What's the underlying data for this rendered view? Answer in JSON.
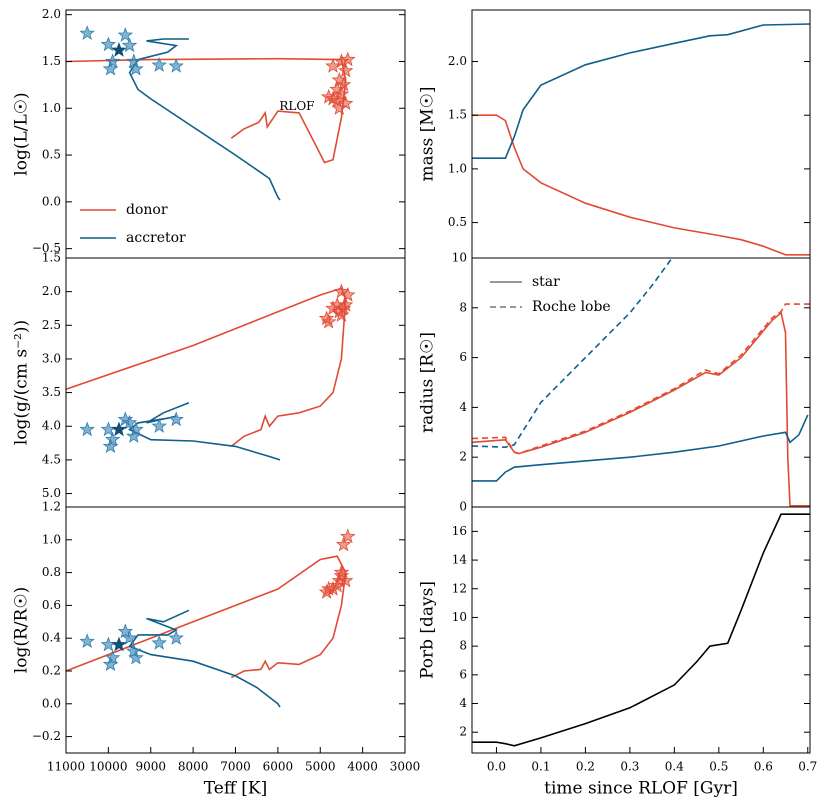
{
  "chart_data": [
    {
      "type": "line",
      "ylabel": "log(L/L☉)",
      "xlim": [
        11000,
        3000
      ],
      "ylim": [
        -0.6,
        2.05
      ],
      "yticks": [
        {
          "value": -0.5,
          "label": "−0.5"
        },
        {
          "value": 0,
          "label": "0.0"
        },
        {
          "value": 0.5,
          "label": "0.5"
        },
        {
          "value": 1,
          "label": "1.0"
        },
        {
          "value": 1.5,
          "label": "1.5"
        },
        {
          "value": 2,
          "label": "2.0"
        }
      ],
      "legend": "lower left",
      "annotation": {
        "text": "RLOF",
        "x": 5550,
        "y": 1.02,
        "color": "#e24a33"
      },
      "series": [
        {
          "name": "donor",
          "color": "#e24a33",
          "x": [
            7100,
            6800,
            6450,
            6300,
            6250,
            6000,
            5500,
            5100,
            4900,
            4700,
            4500,
            4400,
            4500,
            6000,
            9000,
            11000
          ],
          "values": [
            0.68,
            0.78,
            0.85,
            0.95,
            0.8,
            0.97,
            0.95,
            0.6,
            0.42,
            0.45,
            0.9,
            1.3,
            1.52,
            1.53,
            1.52,
            1.5
          ]
        },
        {
          "name": "accretor",
          "color": "#0f5e8c",
          "x": [
            5950,
            6000,
            6200,
            7000,
            8000,
            9000,
            9300,
            9500,
            9300,
            8600,
            8400,
            9100,
            8700,
            8100
          ],
          "values": [
            0.02,
            0.05,
            0.25,
            0.5,
            0.8,
            1.1,
            1.2,
            1.38,
            1.52,
            1.6,
            1.67,
            1.72,
            1.74,
            1.74
          ]
        },
        {
          "marker": "star",
          "color": "#e24a33",
          "opacity": 0.55,
          "x": [
            4500,
            4350,
            4400,
            4700,
            4550,
            4450,
            4600,
            4500,
            4700,
            4800,
            4400,
            4600,
            4550
          ],
          "values": [
            1.5,
            1.52,
            1.4,
            1.45,
            1.3,
            1.25,
            1.2,
            1.15,
            1.1,
            1.12,
            1.05,
            1.08,
            1.0
          ]
        },
        {
          "marker": "star",
          "color": "#2f7fb0",
          "opacity": 0.6,
          "x": [
            10500,
            10000,
            9600,
            9500,
            9900,
            9950,
            9400,
            9350,
            8800,
            8400
          ],
          "values": [
            1.8,
            1.68,
            1.78,
            1.67,
            1.5,
            1.42,
            1.5,
            1.42,
            1.46,
            1.45
          ]
        },
        {
          "marker": "star",
          "color": "#0f4f78",
          "opacity": 1,
          "x": [
            9750
          ],
          "values": [
            1.62
          ]
        }
      ]
    },
    {
      "type": "line",
      "ylabel": "mass [M☉]",
      "xlim": [
        -0.055,
        0.705
      ],
      "ylim": [
        0.17,
        2.48
      ],
      "yticks": [
        {
          "value": 0.5,
          "label": "0.5"
        },
        {
          "value": 1,
          "label": "1.0"
        },
        {
          "value": 1.5,
          "label": "1.5"
        },
        {
          "value": 2,
          "label": "2.0"
        }
      ],
      "series": [
        {
          "color": "#e24a33",
          "x": [
            -0.055,
            0,
            0.02,
            0.04,
            0.06,
            0.1,
            0.2,
            0.3,
            0.4,
            0.5,
            0.55,
            0.6,
            0.65,
            0.705
          ],
          "values": [
            1.5,
            1.5,
            1.45,
            1.2,
            1.0,
            0.87,
            0.68,
            0.55,
            0.45,
            0.38,
            0.34,
            0.28,
            0.2,
            0.2
          ]
        },
        {
          "color": "#0f5e8c",
          "x": [
            -0.055,
            0.02,
            0.04,
            0.06,
            0.1,
            0.2,
            0.3,
            0.4,
            0.48,
            0.52,
            0.6,
            0.705
          ],
          "values": [
            1.1,
            1.1,
            1.3,
            1.55,
            1.78,
            1.97,
            2.08,
            2.17,
            2.24,
            2.25,
            2.34,
            2.35
          ]
        }
      ]
    },
    {
      "type": "line",
      "ylabel": "log(g/(cm s⁻²))",
      "xlim": [
        11000,
        3000
      ],
      "ylim": [
        5.2,
        1.5
      ],
      "yticks": [
        {
          "value": 1.5,
          "label": "1.5"
        },
        {
          "value": 2,
          "label": "2.0"
        },
        {
          "value": 2.5,
          "label": "2.5"
        },
        {
          "value": 3,
          "label": "3.0"
        },
        {
          "value": 3.5,
          "label": "3.5"
        },
        {
          "value": 4,
          "label": "4.0"
        },
        {
          "value": 4.5,
          "label": "4.5"
        },
        {
          "value": 5,
          "label": "5.0"
        }
      ],
      "series": [
        {
          "color": "#e24a33",
          "x": [
            7100,
            6800,
            6400,
            6300,
            6200,
            6000,
            5500,
            5000,
            4700,
            4500,
            4400,
            4500,
            5000,
            6000,
            8000,
            11000
          ],
          "values": [
            4.3,
            4.15,
            4.05,
            3.85,
            4.0,
            3.85,
            3.8,
            3.7,
            3.5,
            3.0,
            2.1,
            1.95,
            2.05,
            2.3,
            2.8,
            3.45
          ]
        },
        {
          "color": "#0f5e8c",
          "x": [
            5950,
            6200,
            7000,
            8000,
            9000,
            9500,
            9300,
            8600,
            8400,
            9100,
            8700,
            8100
          ],
          "values": [
            4.5,
            4.45,
            4.3,
            4.22,
            4.2,
            4.05,
            3.95,
            3.88,
            3.85,
            3.95,
            3.8,
            3.65
          ]
        },
        {
          "marker": "star",
          "color": "#e24a33",
          "opacity": 0.55,
          "x": [
            4500,
            4350,
            4400,
            4700,
            4550,
            4600,
            4850,
            4800,
            4500,
            4450
          ],
          "values": [
            2.0,
            2.05,
            2.2,
            2.25,
            2.3,
            2.2,
            2.4,
            2.45,
            2.35,
            2.25
          ]
        },
        {
          "marker": "star",
          "color": "#2f7fb0",
          "opacity": 0.6,
          "x": [
            10500,
            10000,
            9950,
            9900,
            9600,
            9500,
            9400,
            9350,
            8800,
            8400
          ],
          "values": [
            4.05,
            4.05,
            4.3,
            4.2,
            3.9,
            3.95,
            4.15,
            4.05,
            4.0,
            3.9
          ]
        },
        {
          "marker": "star",
          "color": "#0f4f78",
          "opacity": 1,
          "x": [
            9750
          ],
          "values": [
            4.05
          ]
        }
      ]
    },
    {
      "type": "line",
      "ylabel": "radius [R☉]",
      "xlim": [
        -0.055,
        0.705
      ],
      "ylim": [
        0,
        10
      ],
      "yticks": [
        0,
        2,
        4,
        6,
        8,
        10
      ],
      "legend_entries": [
        {
          "label": "star",
          "dash": false
        },
        {
          "label": "Roche lobe",
          "dash": true
        }
      ],
      "legend_color": "#777777",
      "series": [
        {
          "color": "#e24a33",
          "dash": false,
          "x": [
            -0.055,
            0.02,
            0.04,
            0.05,
            0.1,
            0.2,
            0.3,
            0.4,
            0.47,
            0.5,
            0.55,
            0.62,
            0.64,
            0.65,
            0.655,
            0.66,
            0.705
          ],
          "values": [
            2.6,
            2.7,
            2.2,
            2.15,
            2.4,
            3.0,
            3.8,
            4.7,
            5.4,
            5.3,
            6.0,
            7.5,
            7.8,
            7.0,
            2.0,
            0.05,
            0.05
          ]
        },
        {
          "color": "#e24a33",
          "dash": true,
          "x": [
            -0.055,
            0.02,
            0.04,
            0.05,
            0.1,
            0.2,
            0.3,
            0.4,
            0.47,
            0.5,
            0.55,
            0.62,
            0.64,
            0.65,
            0.705
          ],
          "values": [
            2.75,
            2.8,
            2.2,
            2.15,
            2.45,
            3.05,
            3.85,
            4.75,
            5.5,
            5.35,
            6.1,
            7.6,
            7.85,
            8.15,
            8.15
          ]
        },
        {
          "color": "#0f5e8c",
          "dash": false,
          "x": [
            -0.055,
            0,
            0.02,
            0.04,
            0.1,
            0.2,
            0.3,
            0.4,
            0.5,
            0.6,
            0.65,
            0.66,
            0.68,
            0.7
          ],
          "values": [
            1.05,
            1.05,
            1.4,
            1.6,
            1.7,
            1.85,
            2.0,
            2.2,
            2.45,
            2.85,
            3.0,
            2.6,
            2.9,
            3.7
          ]
        },
        {
          "color": "#0f5e8c",
          "dash": true,
          "x": [
            -0.055,
            0.02,
            0.04,
            0.1,
            0.2,
            0.3,
            0.35,
            0.395
          ],
          "values": [
            2.45,
            2.4,
            2.5,
            4.2,
            6.0,
            7.8,
            8.9,
            10
          ]
        }
      ]
    },
    {
      "type": "line",
      "ylabel": "log(R/R☉)",
      "xlabel": "Teff [K]",
      "xlim": [
        11000,
        3000
      ],
      "ylim": [
        -0.3,
        1.2
      ],
      "xticks": [
        11000,
        10000,
        9000,
        8000,
        7000,
        6000,
        5000,
        4000,
        3000
      ],
      "yticks": [
        {
          "value": -0.2,
          "label": "−0.2"
        },
        {
          "value": 0,
          "label": "0.0"
        },
        {
          "value": 0.2,
          "label": "0.2"
        },
        {
          "value": 0.4,
          "label": "0.4"
        },
        {
          "value": 0.6,
          "label": "0.6"
        },
        {
          "value": 0.8,
          "label": "0.8"
        },
        {
          "value": 1,
          "label": "1.0"
        },
        {
          "value": 1.2,
          "label": "1.2"
        }
      ],
      "series": [
        {
          "color": "#e24a33",
          "x": [
            7100,
            6800,
            6400,
            6300,
            6200,
            6000,
            5500,
            5000,
            4700,
            4500,
            4400,
            4600,
            5000,
            6000,
            8000,
            11000
          ],
          "values": [
            0.16,
            0.2,
            0.21,
            0.26,
            0.21,
            0.25,
            0.24,
            0.3,
            0.4,
            0.6,
            0.8,
            0.9,
            0.88,
            0.7,
            0.5,
            0.2
          ]
        },
        {
          "color": "#0f5e8c",
          "x": [
            5950,
            6000,
            6500,
            7000,
            8000,
            9000,
            9500,
            9300,
            8600,
            8400,
            9100,
            8700,
            8100
          ],
          "values": [
            -0.02,
            0.0,
            0.1,
            0.17,
            0.26,
            0.3,
            0.35,
            0.42,
            0.42,
            0.45,
            0.52,
            0.5,
            0.57
          ]
        },
        {
          "marker": "star",
          "color": "#e24a33",
          "opacity": 0.55,
          "x": [
            4350,
            4450,
            4500,
            4550,
            4600,
            4700,
            4800,
            4850,
            4500,
            4400
          ],
          "values": [
            1.02,
            0.97,
            0.8,
            0.75,
            0.72,
            0.7,
            0.7,
            0.68,
            0.78,
            0.75
          ]
        },
        {
          "marker": "star",
          "color": "#2f7fb0",
          "opacity": 0.6,
          "x": [
            10500,
            10000,
            9950,
            9900,
            9600,
            9500,
            9400,
            9350,
            8800,
            8400
          ],
          "values": [
            0.38,
            0.36,
            0.24,
            0.28,
            0.44,
            0.4,
            0.32,
            0.28,
            0.37,
            0.4
          ]
        },
        {
          "marker": "star",
          "color": "#0f4f78",
          "opacity": 1,
          "x": [
            9750
          ],
          "values": [
            0.36
          ]
        }
      ]
    },
    {
      "type": "line",
      "ylabel": "Porb [days]",
      "xlabel": "time since RLOF [Gyr]",
      "xlim": [
        -0.055,
        0.705
      ],
      "ylim": [
        0.55,
        17.7
      ],
      "xticks": [
        {
          "value": 0,
          "label": "0.0"
        },
        {
          "value": 0.1,
          "label": "0.1"
        },
        {
          "value": 0.2,
          "label": "0.2"
        },
        {
          "value": 0.3,
          "label": "0.3"
        },
        {
          "value": 0.4,
          "label": "0.4"
        },
        {
          "value": 0.5,
          "label": "0.5"
        },
        {
          "value": 0.6,
          "label": "0.6"
        },
        {
          "value": 0.7,
          "label": "0.7"
        }
      ],
      "yticks": [
        2,
        4,
        6,
        8,
        10,
        12,
        14,
        16
      ],
      "series": [
        {
          "color": "#000000",
          "x": [
            -0.055,
            0,
            0.02,
            0.04,
            0.1,
            0.2,
            0.3,
            0.4,
            0.45,
            0.48,
            0.5,
            0.52,
            0.55,
            0.6,
            0.64,
            0.705
          ],
          "values": [
            1.3,
            1.3,
            1.2,
            1.05,
            1.6,
            2.6,
            3.7,
            5.3,
            6.9,
            8.0,
            8.1,
            8.2,
            10.5,
            14.5,
            17.2,
            17.2
          ]
        }
      ]
    }
  ]
}
